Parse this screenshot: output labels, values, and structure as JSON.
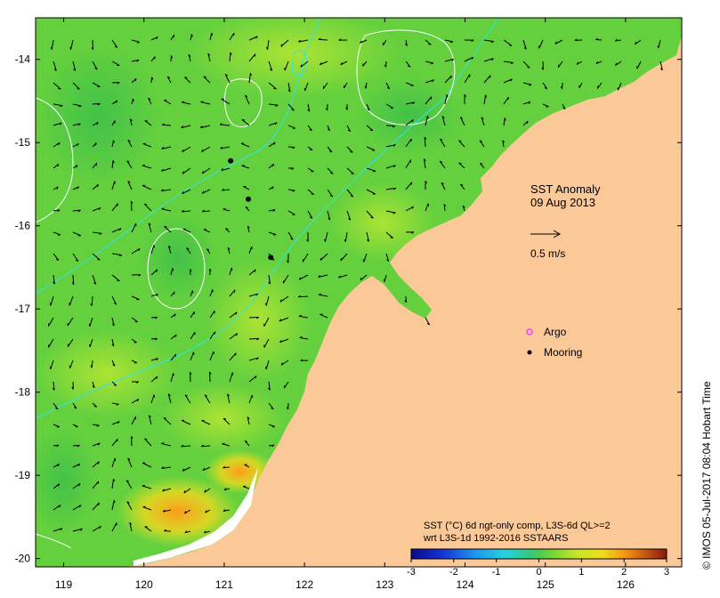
{
  "map": {
    "title_line1": "SST Anomaly",
    "title_line2": "09 Aug 2013",
    "vector_scale_label": "0.5 m/s",
    "legend": {
      "argo_label": "Argo",
      "mooring_label": "Mooring"
    },
    "colorbar": {
      "title_line1": "SST (°C) 6d ngt-only comp, L3S-6d QL>=2",
      "title_line2": "wrt L3S-1d 1992-2016 SSTAARS",
      "ticks": [
        "-3",
        "-2",
        "-1",
        "0",
        "1",
        "2",
        "3"
      ],
      "range": [
        -3,
        3
      ]
    },
    "credit": "© IMOS 05-Jul-2017 08:04 Hobart Time",
    "lon_ticks": [
      "119",
      "120",
      "121",
      "122",
      "123",
      "124",
      "125",
      "126"
    ],
    "lat_ticks": [
      "-14",
      "-15",
      "-16",
      "-17",
      "-18",
      "-19",
      "-20"
    ],
    "lon_range": [
      118.65,
      126.7
    ],
    "lat_range": [
      -20.1,
      -13.5
    ],
    "moorings": [
      {
        "lon": 121.08,
        "lat": -15.22
      },
      {
        "lon": 121.3,
        "lat": -15.68
      },
      {
        "lon": 121.58,
        "lat": -16.38
      }
    ],
    "colors": {
      "land": "#fbc898",
      "ocean_base": "#64d03e",
      "ocean_light": "#a6e435",
      "warm": "#ffb21c",
      "isobath": "#2ee6e8",
      "contour": "#ffffff",
      "argo": "#ff3cff",
      "mooring": "#000000"
    }
  }
}
